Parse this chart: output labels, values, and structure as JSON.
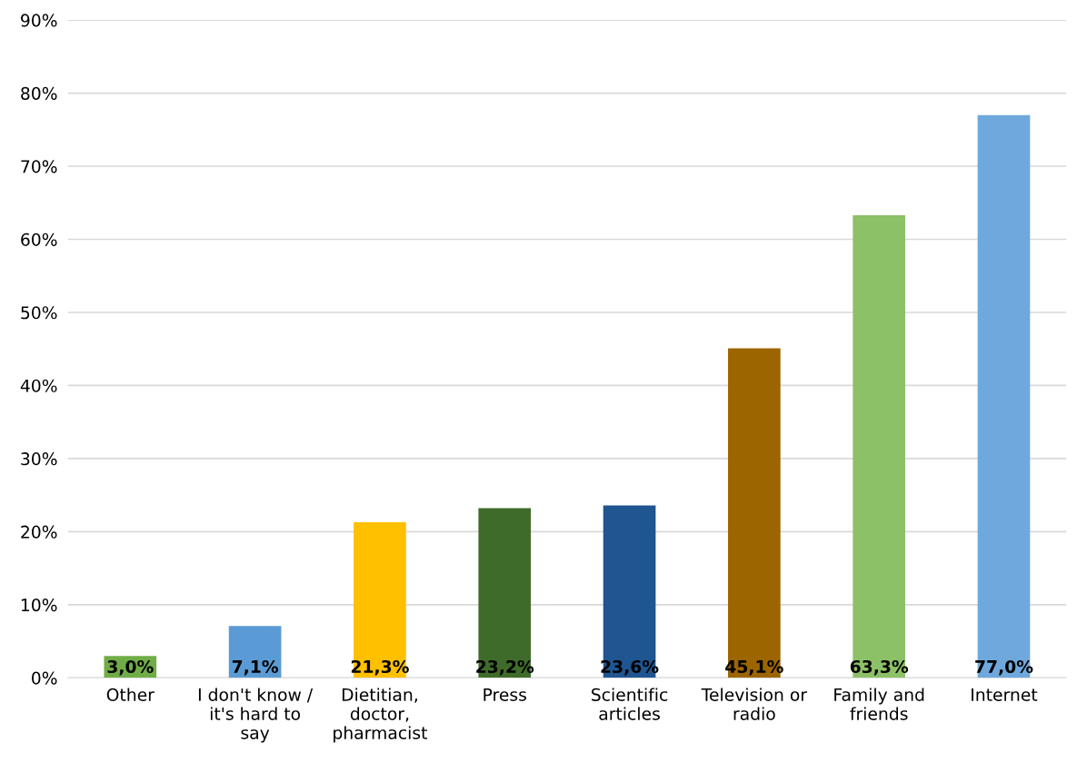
{
  "chart_data": {
    "type": "bar",
    "categories": [
      "Other",
      "I don't know /\nit's hard to\nsay",
      "Dietitian,\ndoctor,\npharmacist",
      "Press",
      "Scientific\narticles",
      "Television or\nradio",
      "Family and\nfriends",
      "Internet"
    ],
    "values": [
      3.0,
      7.1,
      21.3,
      23.2,
      23.6,
      45.1,
      63.3,
      77.0
    ],
    "colors": [
      "#70ad47",
      "#5b9bd5",
      "#ffc000",
      "#3f6b2a",
      "#1f5590",
      "#9c6500",
      "#8cc168",
      "#6fa8dc"
    ],
    "value_labels": [
      "3,0%",
      "7,1%",
      "21,3%",
      "23,2%",
      "23,6%",
      "45,1%",
      "63,3%",
      "77,0%"
    ],
    "ylim": [
      0,
      90
    ],
    "yticks": [
      {
        "value": 0,
        "label": "0%"
      },
      {
        "value": 10,
        "label": "10%"
      },
      {
        "value": 20,
        "label": "20%"
      },
      {
        "value": 30,
        "label": "30%"
      },
      {
        "value": 40,
        "label": "40%"
      },
      {
        "value": 50,
        "label": "50%"
      },
      {
        "value": 60,
        "label": "60%"
      },
      {
        "value": 70,
        "label": "70%"
      },
      {
        "value": 80,
        "label": "80%"
      },
      {
        "value": 90,
        "label": "90%"
      }
    ],
    "grid": "y"
  }
}
